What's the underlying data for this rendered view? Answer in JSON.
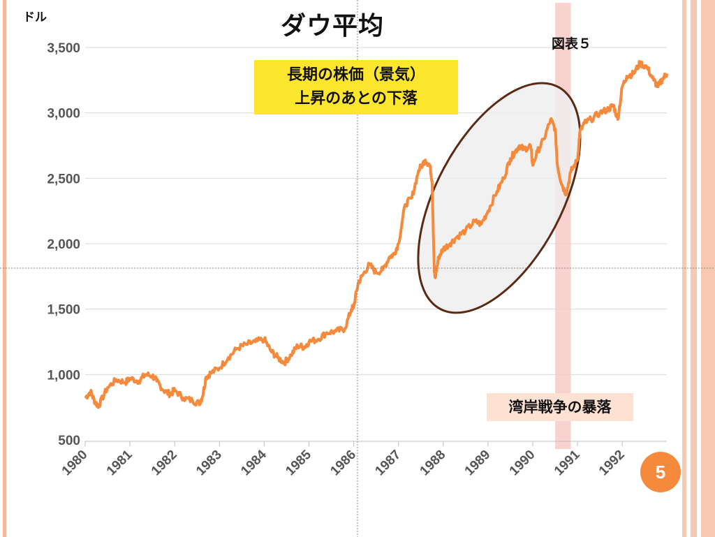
{
  "unit_label": "ドル",
  "title": "ダウ平均",
  "figure_label": "図表５",
  "annotations": {
    "peak_note_line1": "長期の株価（景気）",
    "peak_note_line2": "上昇のあとの下落",
    "war_crash": "湾岸戦争の暴落"
  },
  "page_number": "5",
  "colors": {
    "line": "#f58a3d",
    "highlight_band": "#f7c5c3",
    "ellipse_fill": "#eeeeee",
    "ellipse_stroke": "#5a2a14",
    "yellow_note": "#ffe62e",
    "badge": "#f58a3d"
  },
  "chart_data": {
    "type": "line",
    "title": "ダウ平均",
    "ylabel": "ドル",
    "ylim": [
      500,
      3500
    ],
    "yticks": [
      500,
      1000,
      1500,
      2000,
      2500,
      3000,
      3500
    ],
    "ytick_labels": [
      "500",
      "1,000",
      "1,500",
      "2,000",
      "2,500",
      "3,000",
      "3,500"
    ],
    "xlim": [
      1980,
      1993
    ],
    "xticks": [
      1980,
      1981,
      1982,
      1983,
      1984,
      1985,
      1986,
      1987,
      1988,
      1989,
      1990,
      1991,
      1992
    ],
    "xtick_labels": [
      "1980",
      "1981",
      "1982",
      "1983",
      "1984",
      "1985",
      "1986",
      "1987",
      "1988",
      "1989",
      "1990",
      "1991",
      "1992"
    ],
    "grid": "horizontal",
    "highlight_band_x": [
      1990.5,
      1990.85
    ],
    "series": [
      {
        "x": [
          1980.0,
          1980.12,
          1980.22,
          1980.3,
          1980.5,
          1980.7,
          1980.9,
          1981.0,
          1981.2,
          1981.35,
          1981.5,
          1981.6,
          1981.75,
          1981.9,
          1982.0,
          1982.2,
          1982.4,
          1982.55,
          1982.62,
          1982.7,
          1982.8,
          1983.0,
          1983.2,
          1983.4,
          1983.6,
          1983.8,
          1984.0,
          1984.15,
          1984.3,
          1984.45,
          1984.6,
          1984.75,
          1984.9,
          1985.0,
          1985.2,
          1985.4,
          1985.6,
          1985.8,
          1985.95,
          1986.0,
          1986.1,
          1986.2,
          1986.35,
          1986.5,
          1986.65,
          1986.8,
          1986.9,
          1987.0,
          1987.15,
          1987.3,
          1987.45,
          1987.6,
          1987.7,
          1987.75,
          1987.8,
          1987.82,
          1987.9,
          1988.0,
          1988.15,
          1988.3,
          1988.5,
          1988.7,
          1988.85,
          1989.0,
          1989.2,
          1989.35,
          1989.5,
          1989.6,
          1989.7,
          1989.8,
          1989.95,
          1990.0,
          1990.1,
          1990.25,
          1990.4,
          1990.5,
          1990.55,
          1990.65,
          1990.75,
          1990.85,
          1991.0,
          1991.05,
          1991.15,
          1991.3,
          1991.5,
          1991.7,
          1991.8,
          1991.9,
          1992.0,
          1992.1,
          1992.25,
          1992.4,
          1992.55,
          1992.7,
          1992.8,
          1992.9,
          1993.0
        ],
        "y": [
          820,
          870,
          790,
          760,
          900,
          960,
          940,
          970,
          950,
          1000,
          990,
          950,
          880,
          850,
          880,
          820,
          800,
          780,
          830,
          980,
          1010,
          1050,
          1130,
          1200,
          1230,
          1250,
          1270,
          1180,
          1130,
          1090,
          1150,
          1220,
          1210,
          1250,
          1270,
          1320,
          1330,
          1350,
          1500,
          1520,
          1700,
          1760,
          1840,
          1780,
          1800,
          1900,
          1920,
          2000,
          2300,
          2350,
          2560,
          2640,
          2600,
          2480,
          1790,
          1740,
          1900,
          1960,
          2000,
          2050,
          2100,
          2170,
          2150,
          2250,
          2400,
          2500,
          2650,
          2700,
          2750,
          2720,
          2750,
          2600,
          2700,
          2800,
          2950,
          2880,
          2600,
          2450,
          2380,
          2550,
          2640,
          2850,
          2920,
          2950,
          3000,
          3030,
          3060,
          2950,
          3200,
          3280,
          3300,
          3380,
          3350,
          3250,
          3200,
          3260,
          3300
        ]
      }
    ]
  }
}
